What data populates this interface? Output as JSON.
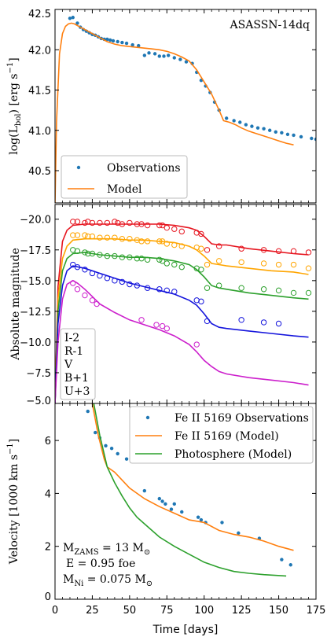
{
  "chart_data": [
    {
      "type": "line",
      "panel": "luminosity",
      "title": "ASASSN-14dq",
      "ylabel": "log(L_bol) [erg s^-1]",
      "ylabel_parts": [
        "log(L",
        "bol",
        ") [erg s",
        "−1",
        "]"
      ],
      "xlim": [
        0,
        175
      ],
      "ylim": [
        40.1,
        42.5
      ],
      "yticks": [
        "40.5",
        "41.0",
        "41.5",
        "42.0",
        "42.5"
      ],
      "legend": {
        "position": "lower-left",
        "entries": [
          "Observations",
          "Model"
        ]
      },
      "series": [
        {
          "name": "Observations",
          "kind": "scatter",
          "color": "#1f77b4",
          "x": [
            10,
            12,
            15,
            17,
            19,
            21,
            23,
            25,
            27,
            29,
            31,
            33,
            35,
            37,
            39,
            42,
            45,
            48,
            52,
            56,
            60,
            63,
            67,
            70,
            73,
            76,
            80,
            84,
            88,
            92,
            95,
            98,
            101,
            104,
            107,
            110,
            115,
            120,
            124,
            128,
            132,
            136,
            140,
            144,
            148,
            152,
            156,
            160,
            165,
            172,
            175
          ],
          "y": [
            42.39,
            42.4,
            42.33,
            42.28,
            42.25,
            42.23,
            42.21,
            42.19,
            42.18,
            42.16,
            42.14,
            42.13,
            42.13,
            42.12,
            42.11,
            42.1,
            42.09,
            42.08,
            42.06,
            42.05,
            41.93,
            41.96,
            41.95,
            41.92,
            41.92,
            41.93,
            41.9,
            41.88,
            41.85,
            41.83,
            41.72,
            41.62,
            41.55,
            41.47,
            41.35,
            41.25,
            41.15,
            41.12,
            41.1,
            41.07,
            41.05,
            41.03,
            41.02,
            41.0,
            40.98,
            40.97,
            40.95,
            40.94,
            40.92,
            40.9,
            40.89
          ]
        },
        {
          "name": "Model",
          "kind": "line",
          "color": "#ff7f0e",
          "x": [
            0,
            1,
            3,
            5,
            7,
            9,
            11,
            13,
            15,
            18,
            21,
            25,
            30,
            35,
            40,
            45,
            50,
            55,
            60,
            65,
            70,
            75,
            80,
            85,
            90,
            95,
            100,
            105,
            110,
            113,
            117,
            121,
            125,
            130,
            135,
            140,
            145,
            150,
            155,
            160
          ],
          "y": [
            40.1,
            41.1,
            41.95,
            42.2,
            42.29,
            42.32,
            42.33,
            42.32,
            42.3,
            42.27,
            42.24,
            42.2,
            42.15,
            42.1,
            42.07,
            42.05,
            42.04,
            42.03,
            42.02,
            42.01,
            42.0,
            41.98,
            41.95,
            41.91,
            41.86,
            41.75,
            41.6,
            41.45,
            41.25,
            41.12,
            41.1,
            41.07,
            41.03,
            40.99,
            40.96,
            40.93,
            40.9,
            40.87,
            40.84,
            40.82
          ]
        }
      ]
    },
    {
      "type": "line",
      "panel": "absolute-magnitude",
      "ylabel": "Absolute magnitude",
      "xlim": [
        0,
        175
      ],
      "ylim": [
        -5.0,
        -21.2
      ],
      "yticks": [
        "−20.0",
        "−17.5",
        "−15.0",
        "−12.5",
        "−10.0",
        "−7.5",
        "−5.0"
      ],
      "legend": {
        "position": "lower-left",
        "entries": [
          "I-2",
          "R-1",
          "V",
          "B+1",
          "U+3"
        ]
      },
      "series": [
        {
          "name": "I-2",
          "color": "#e6141e",
          "obs_x": [
            12,
            15,
            20,
            22,
            25,
            30,
            35,
            40,
            42,
            45,
            50,
            55,
            58,
            62,
            70,
            72,
            75,
            80,
            85,
            95,
            98,
            102,
            110,
            125,
            140,
            150,
            160,
            170
          ],
          "obs_y": [
            -19.8,
            -19.8,
            -19.7,
            -19.8,
            -19.7,
            -19.7,
            -19.7,
            -19.8,
            -19.7,
            -19.6,
            -19.7,
            -19.6,
            -19.6,
            -19.5,
            -19.5,
            -19.5,
            -19.3,
            -19.2,
            -19.0,
            -18.9,
            -18.8,
            -17.5,
            -17.8,
            -17.6,
            -17.5,
            -17.4,
            -17.4,
            -17.3
          ],
          "model_x": [
            0,
            2,
            5,
            8,
            12,
            20,
            30,
            40,
            50,
            60,
            70,
            80,
            90,
            95,
            100,
            105,
            110,
            115,
            130,
            145,
            160,
            170
          ],
          "model_y": [
            -5.0,
            -14.5,
            -18.2,
            -19.1,
            -19.5,
            -19.6,
            -19.6,
            -19.6,
            -19.6,
            -19.6,
            -19.6,
            -19.5,
            -19.3,
            -19.1,
            -18.6,
            -18.0,
            -17.9,
            -17.9,
            -17.6,
            -17.4,
            -17.2,
            -17.1
          ]
        },
        {
          "name": "R-1",
          "color": "#ffa500",
          "obs_x": [
            12,
            15,
            20,
            22,
            25,
            30,
            35,
            40,
            45,
            50,
            55,
            58,
            62,
            70,
            72,
            75,
            80,
            85,
            95,
            98,
            102,
            110,
            125,
            140,
            150,
            160,
            170
          ],
          "obs_y": [
            -18.7,
            -18.7,
            -18.7,
            -18.6,
            -18.6,
            -18.5,
            -18.5,
            -18.5,
            -18.4,
            -18.4,
            -18.3,
            -18.2,
            -18.2,
            -18.2,
            -18.2,
            -18.0,
            -17.9,
            -17.8,
            -17.7,
            -17.6,
            -16.3,
            -16.6,
            -16.5,
            -16.4,
            -16.3,
            -16.3,
            -16.0
          ],
          "model_x": [
            0,
            2,
            5,
            8,
            12,
            20,
            30,
            40,
            50,
            60,
            70,
            80,
            90,
            95,
            100,
            105,
            110,
            115,
            130,
            145,
            160,
            170
          ],
          "model_y": [
            -5.0,
            -13.5,
            -16.8,
            -17.8,
            -18.3,
            -18.4,
            -18.4,
            -18.4,
            -18.3,
            -18.3,
            -18.2,
            -18.1,
            -17.8,
            -17.5,
            -17.0,
            -16.4,
            -16.3,
            -16.2,
            -16.0,
            -15.8,
            -15.7,
            -15.5
          ]
        },
        {
          "name": "V",
          "color": "#2ca02c",
          "obs_x": [
            12,
            15,
            20,
            22,
            25,
            30,
            35,
            40,
            45,
            50,
            55,
            58,
            62,
            70,
            72,
            75,
            80,
            85,
            95,
            98,
            102,
            110,
            125,
            140,
            150,
            160,
            170
          ],
          "obs_y": [
            -17.5,
            -17.4,
            -17.3,
            -17.2,
            -17.2,
            -17.1,
            -17.0,
            -17.0,
            -16.9,
            -16.9,
            -16.8,
            -16.8,
            -16.7,
            -16.7,
            -16.6,
            -16.4,
            -16.3,
            -16.1,
            -16.0,
            -15.9,
            -14.4,
            -14.6,
            -14.4,
            -14.3,
            -14.2,
            -14.0,
            -14.0
          ],
          "model_x": [
            0,
            2,
            5,
            8,
            12,
            20,
            30,
            40,
            50,
            60,
            70,
            80,
            90,
            95,
            100,
            105,
            110,
            115,
            130,
            145,
            160,
            170
          ],
          "model_y": [
            -5.0,
            -12.5,
            -15.8,
            -16.8,
            -17.2,
            -17.3,
            -17.1,
            -17.0,
            -16.9,
            -16.9,
            -16.8,
            -16.6,
            -16.3,
            -15.9,
            -15.3,
            -14.6,
            -14.4,
            -14.3,
            -14.0,
            -13.8,
            -13.6,
            -13.5
          ]
        },
        {
          "name": "B+1",
          "color": "#1414dc",
          "obs_x": [
            12,
            15,
            20,
            25,
            30,
            35,
            40,
            45,
            50,
            55,
            62,
            70,
            75,
            80,
            95,
            98,
            102,
            125,
            140,
            150
          ],
          "obs_y": [
            -16.3,
            -16.1,
            -15.9,
            -15.6,
            -15.4,
            -15.2,
            -15.0,
            -14.9,
            -14.7,
            -14.6,
            -14.4,
            -14.3,
            -14.2,
            -14.1,
            -13.4,
            -13.3,
            -11.7,
            -11.8,
            -11.6,
            -11.5
          ],
          "model_x": [
            0,
            2,
            5,
            8,
            12,
            20,
            30,
            40,
            50,
            60,
            70,
            80,
            90,
            95,
            100,
            105,
            110,
            115,
            130,
            145,
            160,
            170
          ],
          "model_y": [
            -5.0,
            -11.5,
            -14.6,
            -15.8,
            -16.2,
            -16.0,
            -15.6,
            -15.2,
            -14.8,
            -14.5,
            -14.2,
            -13.9,
            -13.4,
            -13.0,
            -12.3,
            -11.5,
            -11.2,
            -11.1,
            -10.9,
            -10.7,
            -10.5,
            -10.4
          ]
        },
        {
          "name": "U+3",
          "color": "#cc1fcc",
          "obs_x": [
            12,
            15,
            20,
            25,
            28,
            58,
            68,
            72,
            75,
            95
          ],
          "obs_y": [
            -14.8,
            -14.3,
            -13.8,
            -13.4,
            -13.1,
            -11.8,
            -11.4,
            -11.3,
            -11.1,
            -9.8
          ],
          "model_x": [
            0,
            2,
            5,
            8,
            12,
            15,
            20,
            25,
            30,
            40,
            50,
            60,
            70,
            80,
            90,
            95,
            100,
            105,
            110,
            115,
            130,
            145,
            160,
            170
          ],
          "model_y": [
            -5.0,
            -10.0,
            -13.5,
            -14.7,
            -15.0,
            -14.8,
            -14.3,
            -13.7,
            -13.1,
            -12.4,
            -11.8,
            -11.4,
            -11.0,
            -10.5,
            -9.8,
            -9.2,
            -8.5,
            -8.0,
            -7.6,
            -7.4,
            -7.1,
            -6.9,
            -6.7,
            -6.5
          ]
        }
      ]
    },
    {
      "type": "line",
      "panel": "velocity",
      "ylabel": "Velocity [1000 km s^-1]",
      "ylabel_parts": [
        "Velocity [1000 km s",
        "−1",
        "]"
      ],
      "xlabel": "Time [days]",
      "xlim": [
        0,
        175
      ],
      "ylim": [
        0,
        7.4
      ],
      "xticks": [
        "0",
        "25",
        "50",
        "75",
        "100",
        "125",
        "150",
        "175"
      ],
      "yticks": [
        "0",
        "2",
        "4",
        "6"
      ],
      "legend": {
        "position": "top-right",
        "entries": [
          "Fe II 5169 Observations",
          "Fe II 5169 (Model)",
          "Photosphere (Model)"
        ]
      },
      "annotation": [
        "M_ZAMS = 13 M_⊙",
        "E = 0.95 foe",
        "M_Ni = 0.075 M_⊙"
      ],
      "annotation_parts": [
        {
          "a": "M",
          "sub": "ZAMS",
          "b": " = 13 M",
          "sub2": "⊙"
        },
        {
          "a": "E = 0.95 foe"
        },
        {
          "a": "M",
          "sub": "Ni",
          "b": " = 0.075 M",
          "sub2": "⊙"
        }
      ],
      "series": [
        {
          "name": "Fe II 5169 Observations",
          "kind": "scatter",
          "color": "#1f77b4",
          "x": [
            22,
            27,
            30,
            34,
            38,
            42,
            48,
            60,
            70,
            72,
            74,
            78,
            80,
            85,
            96,
            98,
            101,
            112,
            123,
            137,
            152,
            158
          ],
          "y": [
            7.1,
            6.3,
            6.1,
            5.8,
            5.7,
            5.5,
            5.3,
            4.1,
            3.8,
            3.7,
            3.6,
            3.4,
            3.6,
            3.3,
            3.1,
            3.0,
            2.9,
            2.9,
            2.5,
            2.3,
            1.5,
            1.3
          ]
        },
        {
          "name": "Fe II 5169 (Model)",
          "kind": "line",
          "color": "#ff7f0e",
          "x": [
            25,
            29,
            33,
            35,
            40,
            45,
            50,
            60,
            70,
            80,
            90,
            100,
            110,
            120,
            130,
            140,
            150,
            160
          ],
          "y": [
            7.4,
            6.2,
            5.3,
            5.0,
            4.8,
            4.5,
            4.2,
            3.8,
            3.5,
            3.25,
            3.0,
            2.9,
            2.6,
            2.45,
            2.35,
            2.2,
            2.0,
            1.85
          ]
        },
        {
          "name": "Photosphere (Model)",
          "kind": "line",
          "color": "#2ca02c",
          "x": [
            26,
            30,
            35,
            40,
            45,
            50,
            55,
            60,
            70,
            80,
            90,
            100,
            110,
            120,
            130,
            140,
            155
          ],
          "y": [
            7.4,
            6.2,
            5.0,
            4.4,
            3.9,
            3.45,
            3.1,
            2.85,
            2.35,
            2.0,
            1.7,
            1.4,
            1.2,
            1.05,
            0.98,
            0.93,
            0.88
          ]
        }
      ]
    }
  ]
}
